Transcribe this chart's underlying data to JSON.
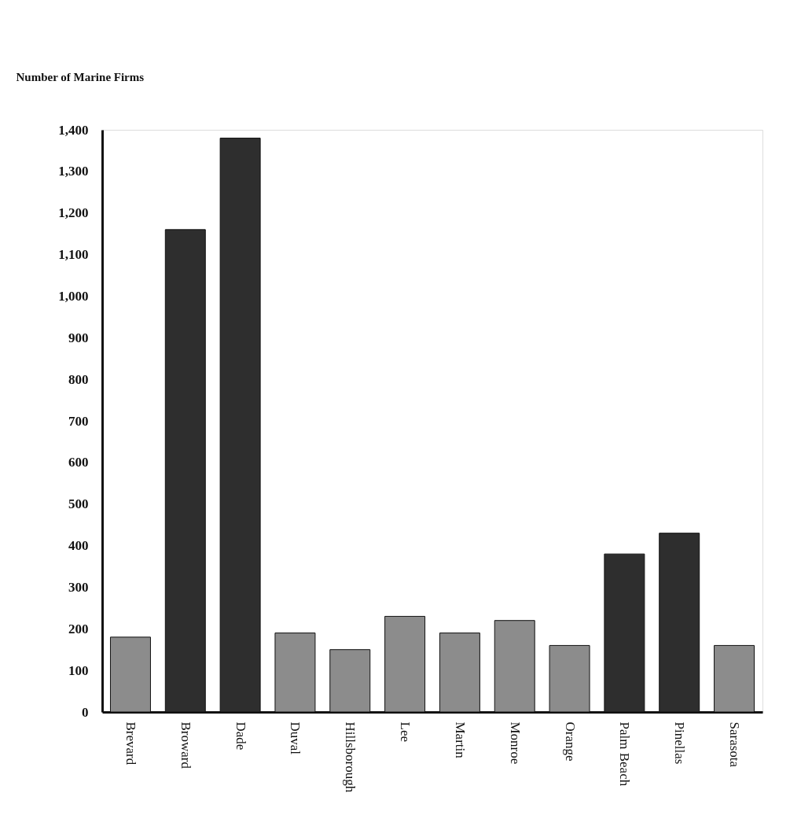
{
  "chart_data": {
    "type": "bar",
    "ylabel": "Number of Marine Firms",
    "categories": [
      "Brevard",
      "Broward",
      "Dade",
      "Duval",
      "Hillsborough",
      "Lee",
      "Martin",
      "Monroe",
      "Orange",
      "Palm Beach",
      "Pinellas",
      "Sarasota"
    ],
    "values": [
      180,
      1160,
      1380,
      190,
      150,
      230,
      190,
      220,
      160,
      380,
      430,
      160
    ],
    "colors": [
      "#8c8c8c",
      "#2e2e2e",
      "#2e2e2e",
      "#8c8c8c",
      "#8c8c8c",
      "#8c8c8c",
      "#8c8c8c",
      "#8c8c8c",
      "#8c8c8c",
      "#2e2e2e",
      "#2e2e2e",
      "#8c8c8c"
    ],
    "ylim": [
      0,
      1400
    ],
    "yticks": [
      0,
      100,
      200,
      300,
      400,
      500,
      600,
      700,
      800,
      900,
      {
        "value": 1000,
        "label": "1,000"
      },
      {
        "value": 1100,
        "label": "1,100"
      },
      {
        "value": 1200,
        "label": "1,200"
      },
      {
        "value": 1300,
        "label": "1,300"
      },
      {
        "value": 1400,
        "label": "1,400"
      }
    ],
    "grid": false
  }
}
